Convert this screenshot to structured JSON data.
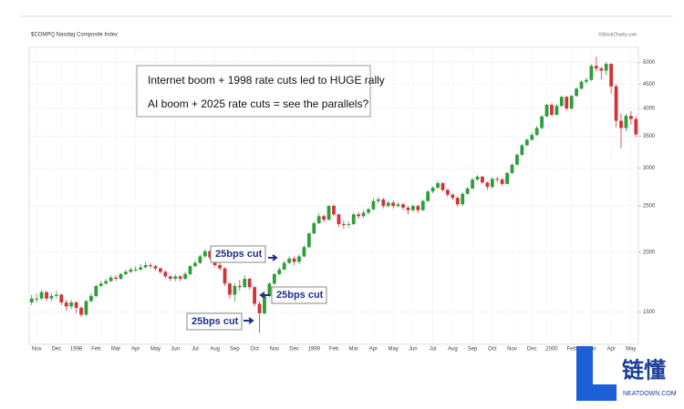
{
  "chart_data": {
    "type": "candlestick",
    "title": "$COMPQ Nasdaq Composite Index",
    "source": "©StockCharts.com",
    "annotations": [
      "Internet boom + 1998 rate cuts led to HUGE rally",
      "AI boom + 2025 rate cuts = see the parallels?"
    ],
    "cut_labels": [
      "25bps cut",
      "25bps cut",
      "25bps cut"
    ],
    "watermark": {
      "name": "链懂",
      "site": "NEATDOWN.COM"
    },
    "up_color": "#2e9e3a",
    "down_color": "#d0343a",
    "log_scale": true,
    "grid": true,
    "ylim": [
      1300,
      5300
    ],
    "yticks": [
      1500,
      2000,
      2500,
      3000,
      3500,
      4000,
      4500,
      5000
    ],
    "categories": [
      null,
      "Nov",
      null,
      null,
      null,
      "Dec",
      null,
      null,
      null,
      "1998",
      null,
      null,
      null,
      "Feb",
      null,
      null,
      null,
      "Mar",
      null,
      null,
      null,
      "Apr",
      null,
      null,
      null,
      "May",
      null,
      null,
      null,
      "Jun",
      null,
      null,
      null,
      "Jul",
      null,
      null,
      null,
      "Aug",
      null,
      null,
      null,
      "Sep",
      null,
      null,
      null,
      "Oct",
      null,
      null,
      null,
      "Nov",
      null,
      null,
      null,
      "Dec",
      null,
      null,
      null,
      "1999",
      null,
      null,
      null,
      "Feb",
      null,
      null,
      null,
      "Mar",
      null,
      null,
      null,
      "Apr",
      null,
      null,
      null,
      "May",
      null,
      null,
      null,
      "Jun",
      null,
      null,
      null,
      "Jul",
      null,
      null,
      null,
      "Aug",
      null,
      null,
      null,
      "Sep",
      null,
      null,
      null,
      "Oct",
      null,
      null,
      null,
      "Nov",
      null,
      null,
      null,
      "Dec",
      null,
      null,
      null,
      "2000",
      null,
      null,
      null,
      "Feb",
      null,
      null,
      null,
      "Mar",
      null,
      null,
      null,
      "Apr",
      null,
      null,
      null,
      "May",
      null
    ],
    "open": [
      1570,
      1600,
      1600,
      1650,
      1600,
      1620,
      1630,
      1570,
      1540,
      1570,
      1530,
      1480,
      1580,
      1620,
      1700,
      1720,
      1740,
      1770,
      1760,
      1800,
      1820,
      1840,
      1840,
      1860,
      1880,
      1870,
      1850,
      1820,
      1780,
      1760,
      1780,
      1760,
      1800,
      1870,
      1900,
      1960,
      2010,
      1950,
      1880,
      1850,
      1720,
      1630,
      1700,
      1690,
      1760,
      1690,
      1560,
      1490,
      1620,
      1720,
      1800,
      1840,
      1900,
      1940,
      1910,
      1960,
      2050,
      2190,
      2300,
      2380,
      2340,
      2500,
      2400,
      2290,
      2280,
      2290,
      2400,
      2380,
      2420,
      2460,
      2560,
      2580,
      2500,
      2540,
      2500,
      2520,
      2480,
      2450,
      2500,
      2450,
      2560,
      2680,
      2730,
      2790,
      2700,
      2640,
      2600,
      2520,
      2650,
      2720,
      2840,
      2880,
      2800,
      2740,
      2850,
      2840,
      2780,
      2930,
      3050,
      3200,
      3350,
      3440,
      3520,
      3640,
      3850,
      4070,
      3880,
      4050,
      4230,
      4000,
      4250,
      4400,
      4550,
      4590,
      4910,
      4850,
      4800,
      4960,
      4450,
      3770,
      3640,
      3860,
      3800
    ],
    "high": [
      1630,
      1640,
      1670,
      1660,
      1640,
      1660,
      1640,
      1590,
      1590,
      1580,
      1540,
      1590,
      1640,
      1710,
      1740,
      1760,
      1790,
      1790,
      1810,
      1840,
      1860,
      1870,
      1890,
      1911,
      1900,
      1880,
      1860,
      1830,
      1790,
      1800,
      1790,
      1820,
      1880,
      1920,
      1980,
      2028,
      2020,
      1960,
      1900,
      1860,
      1730,
      1720,
      1750,
      1790,
      1770,
      1700,
      1580,
      1640,
      1730,
      1810,
      1860,
      1920,
      1960,
      1960,
      1980,
      2070,
      2200,
      2320,
      2410,
      2400,
      2510,
      2520,
      2410,
      2330,
      2320,
      2420,
      2430,
      2450,
      2480,
      2590,
      2610,
      2600,
      2560,
      2570,
      2550,
      2540,
      2500,
      2520,
      2520,
      2580,
      2700,
      2750,
      2820,
      2800,
      2720,
      2660,
      2620,
      2670,
      2740,
      2860,
      2900,
      2890,
      2810,
      2870,
      2880,
      2860,
      2950,
      3070,
      3220,
      3370,
      3460,
      3560,
      3680,
      3870,
      4090,
      4100,
      4090,
      4260,
      4250,
      4270,
      4430,
      4580,
      4640,
      4950,
      5132,
      4900,
      5000,
      4970,
      4500,
      3900,
      3900,
      3950,
      3850
    ],
    "low": [
      1550,
      1570,
      1590,
      1580,
      1580,
      1600,
      1550,
      1510,
      1520,
      1490,
      1465,
      1470,
      1570,
      1610,
      1690,
      1710,
      1730,
      1740,
      1750,
      1790,
      1810,
      1820,
      1830,
      1850,
      1850,
      1830,
      1800,
      1760,
      1740,
      1740,
      1740,
      1750,
      1790,
      1860,
      1890,
      1950,
      1930,
      1860,
      1830,
      1700,
      1600,
      1580,
      1660,
      1680,
      1670,
      1540,
      1357,
      1480,
      1610,
      1710,
      1790,
      1830,
      1890,
      1880,
      1890,
      1950,
      2040,
      2180,
      2290,
      2310,
      2330,
      2380,
      2260,
      2240,
      2250,
      2280,
      2350,
      2360,
      2400,
      2450,
      2530,
      2470,
      2480,
      2470,
      2480,
      2450,
      2400,
      2430,
      2420,
      2440,
      2550,
      2660,
      2710,
      2680,
      2610,
      2570,
      2490,
      2500,
      2640,
      2710,
      2820,
      2780,
      2700,
      2720,
      2800,
      2750,
      2770,
      2920,
      3040,
      3180,
      3330,
      3420,
      3500,
      3620,
      3840,
      3850,
      3860,
      4030,
      3960,
      3980,
      4230,
      4380,
      4500,
      4570,
      4780,
      4600,
      4700,
      4300,
      3650,
      3300,
      3580,
      3700,
      3480
    ],
    "close": [
      1600,
      1600,
      1650,
      1600,
      1620,
      1630,
      1570,
      1540,
      1570,
      1530,
      1480,
      1580,
      1620,
      1700,
      1720,
      1740,
      1770,
      1760,
      1800,
      1820,
      1840,
      1840,
      1860,
      1880,
      1870,
      1850,
      1820,
      1780,
      1760,
      1780,
      1760,
      1800,
      1870,
      1900,
      1960,
      2010,
      1950,
      1880,
      1850,
      1720,
      1630,
      1700,
      1690,
      1760,
      1690,
      1560,
      1490,
      1620,
      1720,
      1800,
      1840,
      1900,
      1940,
      1910,
      1960,
      2050,
      2190,
      2300,
      2380,
      2340,
      2500,
      2400,
      2290,
      2280,
      2290,
      2400,
      2380,
      2420,
      2460,
      2560,
      2580,
      2500,
      2540,
      2500,
      2520,
      2480,
      2450,
      2500,
      2450,
      2560,
      2680,
      2730,
      2790,
      2700,
      2640,
      2600,
      2520,
      2650,
      2720,
      2840,
      2880,
      2800,
      2740,
      2850,
      2840,
      2780,
      2930,
      3050,
      3200,
      3350,
      3440,
      3520,
      3640,
      3850,
      4070,
      3880,
      4050,
      4230,
      4000,
      4250,
      4400,
      4550,
      4590,
      4910,
      4850,
      4800,
      4960,
      4450,
      3770,
      3640,
      3860,
      3800,
      3530
    ]
  }
}
